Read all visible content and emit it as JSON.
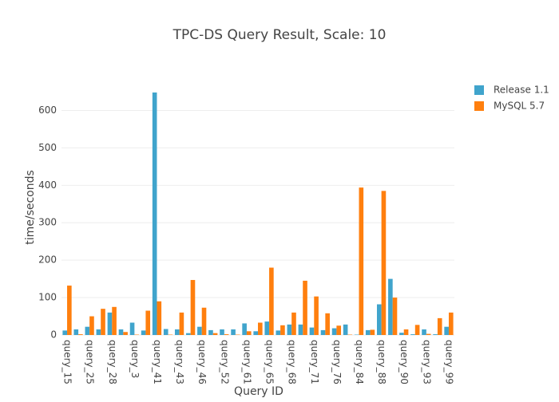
{
  "chart_data": {
    "type": "bar",
    "title": "TPC-DS Query Result, Scale: 10",
    "x_label": "Query ID",
    "y_label": "time/seconds",
    "categories": [
      "query_15",
      null,
      "query_25",
      null,
      "query_28",
      null,
      "query_3",
      null,
      "query_41",
      null,
      "query_43",
      null,
      "query_46",
      null,
      "query_52",
      null,
      "query_61",
      null,
      "query_65",
      null,
      "query_68",
      null,
      "query_71",
      null,
      "query_76",
      null,
      "query_84",
      null,
      "query_88",
      null,
      "query_90",
      null,
      "query_93",
      null,
      "query_99"
    ],
    "series": [
      {
        "name": "Release 1.1",
        "color": "#40a4cc",
        "values": [
          12,
          15,
          22,
          15,
          60,
          15,
          33,
          12,
          648,
          16,
          15,
          5,
          22,
          13,
          15,
          15,
          31,
          10,
          36,
          12,
          28,
          28,
          20,
          13,
          18,
          28,
          1,
          13,
          82,
          150,
          6,
          2,
          15,
          2,
          22
        ]
      },
      {
        "name": "MySQL 5.7",
        "color": "#ff7f0e",
        "values": [
          132,
          2,
          50,
          70,
          75,
          8,
          1,
          65,
          90,
          1,
          60,
          147,
          73,
          5,
          2,
          1,
          10,
          33,
          180,
          26,
          60,
          145,
          103,
          58,
          25,
          1,
          394,
          14,
          385,
          100,
          15,
          27,
          3,
          45,
          60
        ]
      }
    ],
    "ylim": [
      0,
      682
    ],
    "yticks": [
      0,
      100,
      200,
      300,
      400,
      500,
      600
    ],
    "grid": true
  }
}
